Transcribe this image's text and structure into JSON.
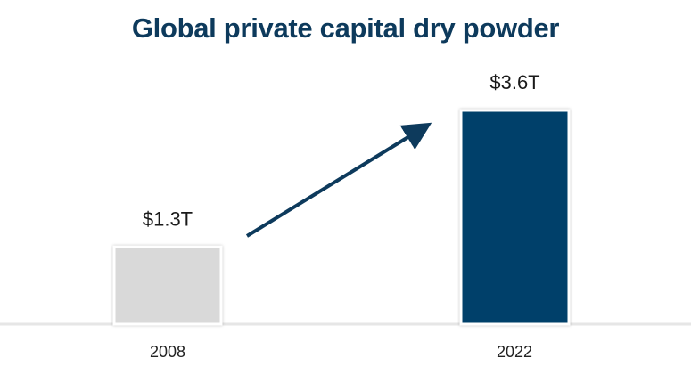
{
  "chart_data": {
    "type": "bar",
    "title": "Global private capital dry powder",
    "categories": [
      "2008",
      "2022"
    ],
    "values": [
      1.3,
      3.6
    ],
    "data_labels": [
      "$1.3T",
      "$3.6T"
    ],
    "unit": "T",
    "ylim": [
      0,
      3.6
    ],
    "xlabel": "",
    "ylabel": "",
    "grid": false,
    "legend": "none",
    "bar_colors": [
      "#d9d9d9",
      "#003f6b"
    ],
    "arrow_color": "#0d3a5c",
    "baseline_color": "#e6e6e6"
  }
}
